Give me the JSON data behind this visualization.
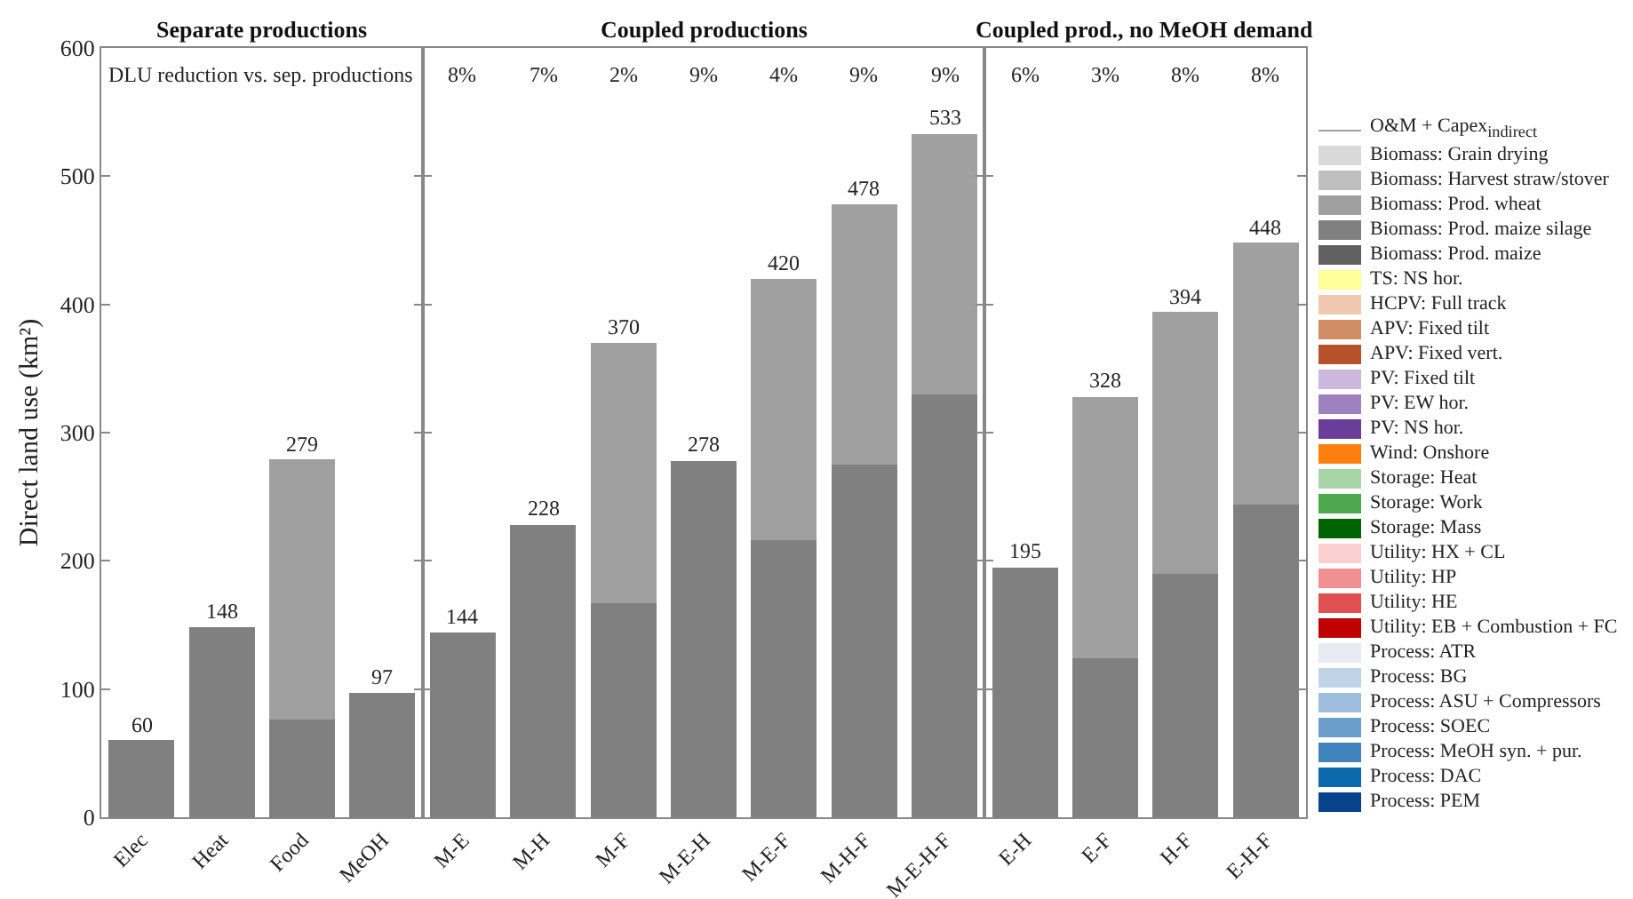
{
  "chart_data": [
    {
      "type": "bar",
      "title": "Separate productions",
      "ylabel": "Direct land use (km²)",
      "stacked": true,
      "legend": "right",
      "grid": false,
      "categories": [
        "Elec",
        "Heat",
        "Food",
        "MeOH"
      ],
      "ylim": [
        0,
        600
      ],
      "yticks": [
        0,
        100,
        200,
        300,
        400,
        500,
        600
      ],
      "totals": [
        "60",
        "148",
        "279",
        "97"
      ],
      "annotations": [
        "DLU reduction vs. sep. productions"
      ],
      "series": [
        {
          "name": "Process: PEM",
          "color": "#08428a",
          "values": [
            null,
            null,
            null,
            null
          ]
        },
        {
          "name": "Process: DAC",
          "color": "#0a68ac",
          "values": [
            null,
            null,
            null,
            null
          ]
        },
        {
          "name": "Process: MeOH syn. + pur.",
          "color": "#3f82bc",
          "values": [
            null,
            null,
            null,
            null
          ]
        },
        {
          "name": "Process: SOEC",
          "color": "#6c9ecb",
          "values": [
            null,
            null,
            null,
            null
          ]
        },
        {
          "name": "Process: ASU + Compressors",
          "color": "#9ebcdc",
          "values": [
            null,
            null,
            null,
            null
          ]
        },
        {
          "name": "Process: BG",
          "color": "#c0d4e8",
          "values": [
            null,
            null,
            null,
            null
          ]
        },
        {
          "name": "Process: ATR",
          "color": "#e6eaf2",
          "values": [
            null,
            null,
            null,
            null
          ]
        },
        {
          "name": "Utility: EB + Combustion + FC",
          "color": "#c00000",
          "values": [
            null,
            null,
            null,
            null
          ]
        },
        {
          "name": "Utility: HE",
          "color": "#e05050",
          "values": [
            null,
            null,
            null,
            null
          ]
        },
        {
          "name": "Utility: HP",
          "color": "#f09090",
          "values": [
            null,
            null,
            null,
            null
          ]
        },
        {
          "name": "Utility: HX + CL",
          "color": "#fcd0d0",
          "values": [
            null,
            null,
            null,
            null
          ]
        },
        {
          "name": "Storage: Mass",
          "color": "#006400",
          "values": [
            null,
            null,
            null,
            null
          ]
        },
        {
          "name": "Storage: Work",
          "color": "#4ea84e",
          "values": [
            null,
            null,
            null,
            null
          ]
        },
        {
          "name": "Storage: Heat",
          "color": "#a8d5a8",
          "values": [
            null,
            null,
            null,
            null
          ]
        },
        {
          "name": "Wind: Onshore",
          "color": "#ff7f0e",
          "values": [
            null,
            null,
            null,
            null
          ]
        },
        {
          "name": "PV: NS hor.",
          "color": "#6a3d9a",
          "values": [
            null,
            null,
            null,
            null
          ]
        },
        {
          "name": "PV: EW hor.",
          "color": "#9e82c0",
          "values": [
            null,
            null,
            null,
            null
          ]
        },
        {
          "name": "PV: Fixed tilt",
          "color": "#cbb8dc",
          "values": [
            null,
            null,
            null,
            null
          ]
        },
        {
          "name": "APV: Fixed vert.",
          "color": "#b5522a",
          "values": [
            null,
            null,
            null,
            null
          ]
        },
        {
          "name": "APV: Fixed tilt",
          "color": "#d08c64",
          "values": [
            null,
            null,
            null,
            null
          ]
        },
        {
          "name": "HCPV: Full track",
          "color": "#f0c8b0",
          "values": [
            null,
            null,
            null,
            null
          ]
        },
        {
          "name": "TS: NS hor.",
          "color": "#ffff99",
          "values": [
            null,
            null,
            null,
            null
          ]
        },
        {
          "name": "Biomass: Prod. maize",
          "color": "#606060",
          "values": [
            null,
            null,
            null,
            null
          ]
        },
        {
          "name": "Biomass: Prod. maize silage",
          "color": "#808080",
          "values": [
            60,
            148,
            76,
            97
          ]
        },
        {
          "name": "Biomass: Prod. wheat",
          "color": "#a0a0a0",
          "values": [
            null,
            null,
            203,
            null
          ]
        },
        {
          "name": "Biomass: Harvest straw/stover",
          "color": "#bfbfbf",
          "values": [
            null,
            null,
            null,
            null
          ]
        },
        {
          "name": "Biomass: Grain drying",
          "color": "#d9d9d9",
          "values": [
            null,
            null,
            null,
            null
          ]
        },
        {
          "name": "O&M + Capex$_{indirect}$",
          "type": "line",
          "color": "#a0a0a0",
          "values": [
            null,
            null,
            null,
            null
          ]
        }
      ]
    },
    {
      "type": "bar",
      "title": "Coupled productions",
      "stacked": true,
      "grid": false,
      "tick_labels": "x",
      "categories": [
        "M-E",
        "M-H",
        "M-F",
        "M-E-H",
        "M-E-F",
        "M-H-F",
        "M-E-H-F"
      ],
      "ylim": [
        0,
        600
      ],
      "yticks": [
        0,
        100,
        200,
        300,
        400,
        500,
        600
      ],
      "totals": [
        "144",
        "228",
        "370",
        "278",
        "420",
        "478",
        "533"
      ],
      "annotations": [
        "8%",
        "7%",
        "2%",
        "9%",
        "4%",
        "9%",
        "9%"
      ],
      "series": [
        {
          "name": "Biomass: Prod. maize silage",
          "color": "#808080",
          "values": [
            144,
            228,
            167,
            278,
            216,
            275,
            330
          ]
        },
        {
          "name": "Biomass: Prod. wheat",
          "color": "#a0a0a0",
          "values": [
            null,
            null,
            203,
            null,
            204,
            203,
            203
          ]
        }
      ]
    },
    {
      "type": "bar",
      "title": "Coupled prod., no MeOH demand",
      "stacked": true,
      "grid": false,
      "tick_labels": "x",
      "categories": [
        "E-H",
        "E-F",
        "H-F",
        "E-H-F"
      ],
      "ylim": [
        0,
        600
      ],
      "yticks": [
        0,
        100,
        200,
        300,
        400,
        500,
        600
      ],
      "totals": [
        "195",
        "328",
        "394",
        "448"
      ],
      "annotations": [
        "6%",
        "3%",
        "8%",
        "8%"
      ],
      "series": [
        {
          "name": "Biomass: Prod. maize silage",
          "color": "#808080",
          "values": [
            195,
            124,
            190,
            244
          ]
        },
        {
          "name": "Biomass: Prod. wheat",
          "color": "#a0a0a0",
          "values": [
            null,
            204,
            204,
            204
          ]
        }
      ]
    }
  ]
}
